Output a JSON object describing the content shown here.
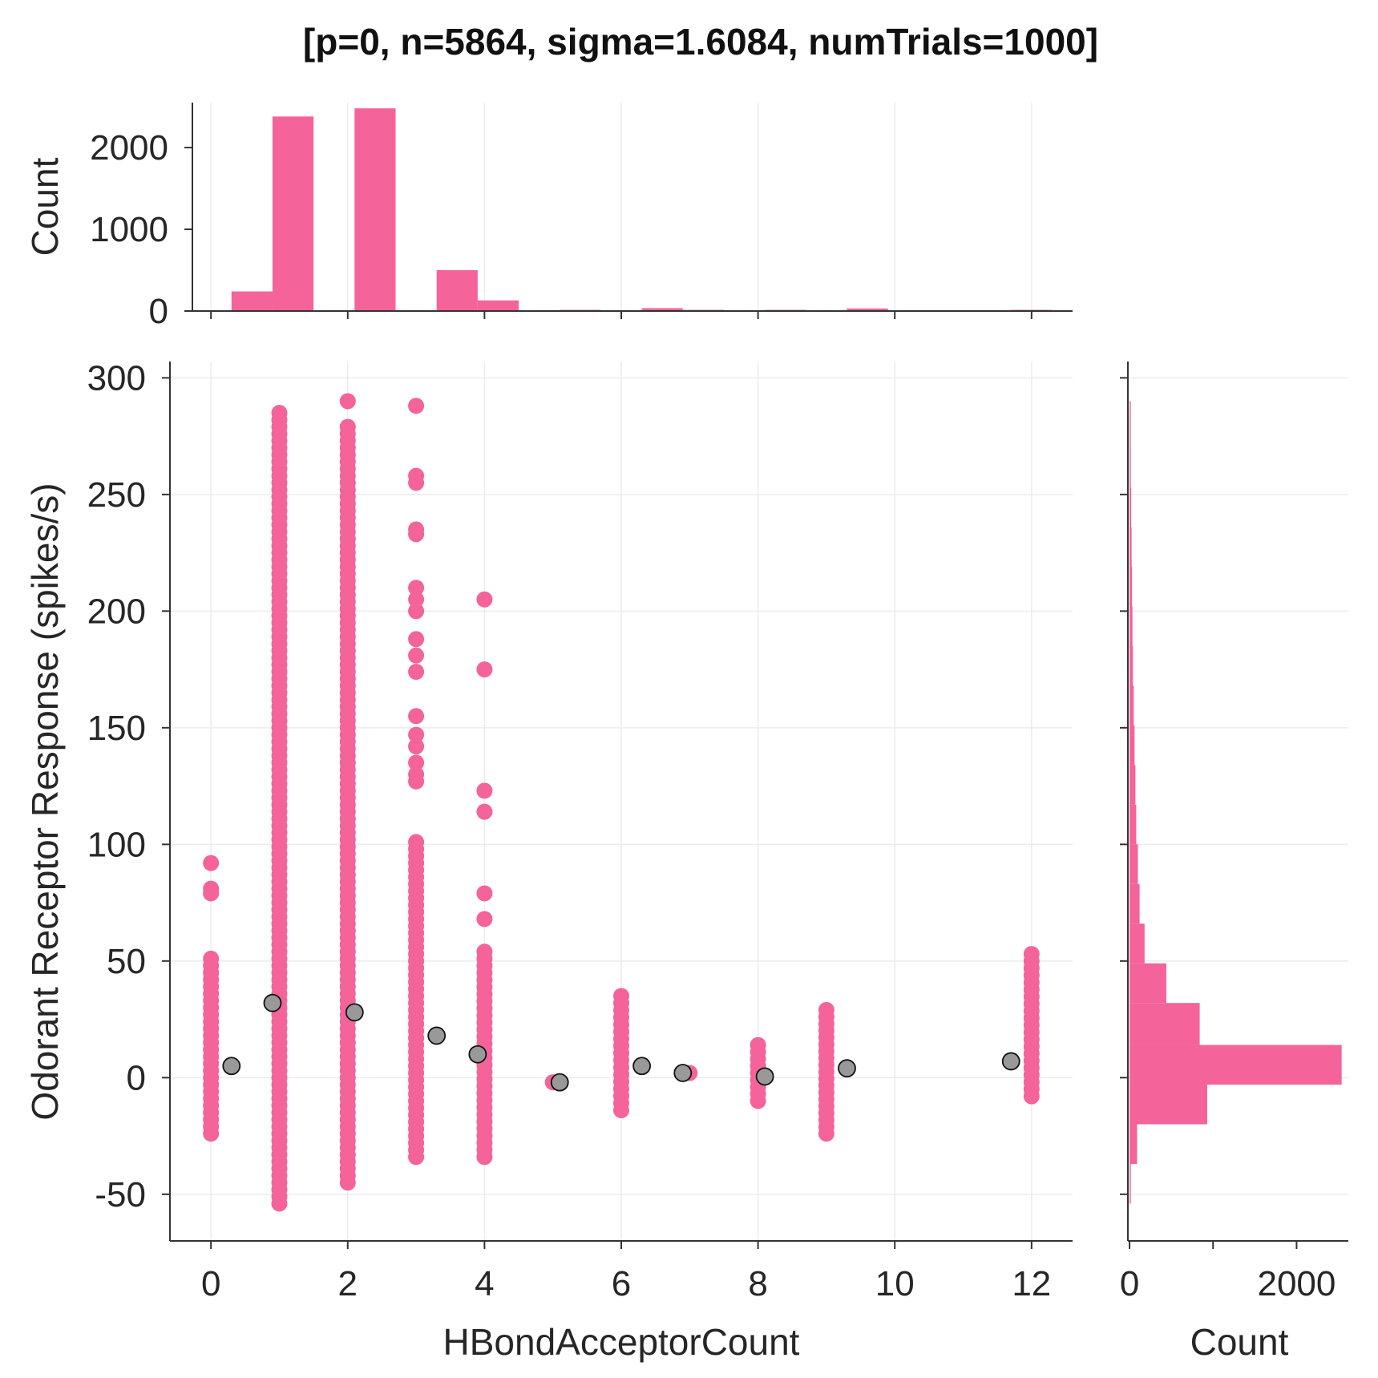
{
  "chart_data": {
    "type": "scatter",
    "title": "[p=0, n=5864, sigma=1.6084, numTrials=1000]",
    "xlabel": "HBondAcceptorCount",
    "ylabel": "Odorant Receptor Response (spikes/s)",
    "xlim": [
      -0.6,
      12.6
    ],
    "ylim": [
      -70,
      307
    ],
    "x_ticks": [
      "0",
      "2",
      "4",
      "6",
      "8",
      "10",
      "12"
    ],
    "y_ticks": [
      "-50",
      "0",
      "50",
      "100",
      "150",
      "200",
      "250",
      "300"
    ],
    "grid": true,
    "point_color": "#f4639a",
    "mean_marker_color": "#999999",
    "raw_points": [
      {
        "x": 0,
        "y_min": -24,
        "y_max": 51,
        "dense": true,
        "extra": [
          92,
          81,
          79
        ]
      },
      {
        "x": 1,
        "y_min": -54,
        "y_max": 285,
        "dense": true,
        "extra": []
      },
      {
        "x": 2,
        "y_min": -45,
        "y_max": 279,
        "dense": true,
        "extra": [
          290
        ]
      },
      {
        "x": 3,
        "y_min": -34,
        "y_max": 101,
        "dense": true,
        "extra": [
          288,
          258,
          255,
          235,
          233,
          210,
          205,
          200,
          188,
          181,
          174,
          155,
          147,
          142,
          135,
          130,
          127
        ]
      },
      {
        "x": 4,
        "y_min": -34,
        "y_max": 54,
        "dense": true,
        "extra": [
          205,
          175,
          123,
          114,
          79,
          68
        ]
      },
      {
        "x": 5,
        "y_min": -2,
        "y_max": -2,
        "dense": false,
        "extra": []
      },
      {
        "x": 6,
        "y_min": -14,
        "y_max": 35,
        "dense": true,
        "extra": []
      },
      {
        "x": 7,
        "y_min": 2,
        "y_max": 2,
        "dense": false,
        "extra": []
      },
      {
        "x": 8,
        "y_min": -10,
        "y_max": 14,
        "dense": true,
        "extra": []
      },
      {
        "x": 9,
        "y_min": -24,
        "y_max": 29,
        "dense": true,
        "extra": []
      },
      {
        "x": 12,
        "y_min": -8,
        "y_max": 53,
        "dense": true,
        "extra": []
      }
    ],
    "mean_points": [
      {
        "x": 0.3,
        "y": 5
      },
      {
        "x": 0.9,
        "y": 32
      },
      {
        "x": 2.1,
        "y": 28
      },
      {
        "x": 3.3,
        "y": 18
      },
      {
        "x": 3.9,
        "y": 10
      },
      {
        "x": 5.1,
        "y": -2
      },
      {
        "x": 6.3,
        "y": 5
      },
      {
        "x": 6.9,
        "y": 2
      },
      {
        "x": 8.1,
        "y": 0.5
      },
      {
        "x": 9.3,
        "y": 4
      },
      {
        "x": 11.7,
        "y": 7
      }
    ],
    "top_histogram": {
      "ylabel": "Count",
      "ylim": [
        0,
        2550
      ],
      "y_ticks": [
        "0",
        "1000",
        "2000"
      ],
      "bins": [
        {
          "x0": 0.3,
          "x1": 0.9,
          "count": 240
        },
        {
          "x0": 0.9,
          "x1": 1.5,
          "count": 2380
        },
        {
          "x0": 2.1,
          "x1": 2.7,
          "count": 2480
        },
        {
          "x0": 3.3,
          "x1": 3.9,
          "count": 500
        },
        {
          "x0": 3.9,
          "x1": 4.5,
          "count": 130
        },
        {
          "x0": 5.1,
          "x1": 5.7,
          "count": 4
        },
        {
          "x0": 6.3,
          "x1": 6.9,
          "count": 35
        },
        {
          "x0": 6.9,
          "x1": 7.5,
          "count": 3
        },
        {
          "x0": 8.1,
          "x1": 8.7,
          "count": 14
        },
        {
          "x0": 9.3,
          "x1": 9.9,
          "count": 32
        },
        {
          "x0": 11.7,
          "x1": 12.3,
          "count": 12
        }
      ]
    },
    "right_histogram": {
      "xlabel": "Count",
      "xlim": [
        -20,
        2620
      ],
      "x_ticks": [
        "0",
        "2000"
      ],
      "bins": [
        {
          "y0": -54,
          "y1": -37,
          "count": 15
        },
        {
          "y0": -37,
          "y1": -20,
          "count": 90
        },
        {
          "y0": -20,
          "y1": -3,
          "count": 930
        },
        {
          "y0": -3,
          "y1": 14,
          "count": 2540
        },
        {
          "y0": 14,
          "y1": 32,
          "count": 840
        },
        {
          "y0": 32,
          "y1": 49,
          "count": 440
        },
        {
          "y0": 49,
          "y1": 66,
          "count": 180
        },
        {
          "y0": 66,
          "y1": 83,
          "count": 120
        },
        {
          "y0": 83,
          "y1": 100,
          "count": 100
        },
        {
          "y0": 100,
          "y1": 117,
          "count": 80
        },
        {
          "y0": 117,
          "y1": 134,
          "count": 70
        },
        {
          "y0": 134,
          "y1": 151,
          "count": 60
        },
        {
          "y0": 151,
          "y1": 168,
          "count": 50
        },
        {
          "y0": 168,
          "y1": 185,
          "count": 40
        },
        {
          "y0": 185,
          "y1": 202,
          "count": 35
        },
        {
          "y0": 202,
          "y1": 219,
          "count": 30
        },
        {
          "y0": 219,
          "y1": 236,
          "count": 25
        },
        {
          "y0": 236,
          "y1": 253,
          "count": 20
        },
        {
          "y0": 253,
          "y1": 270,
          "count": 15
        },
        {
          "y0": 270,
          "y1": 290,
          "count": 12
        }
      ]
    }
  }
}
